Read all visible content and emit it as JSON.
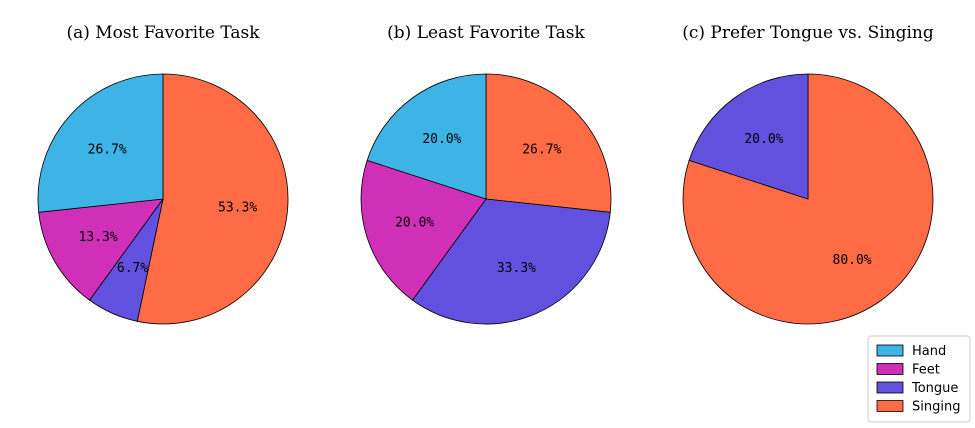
{
  "colors": {
    "Hand": "#3db3e6",
    "Feet": "#d030b8",
    "Tongue": "#6251de",
    "Singing": "#ff6b45"
  },
  "chart_data": [
    {
      "type": "pie",
      "title": "(a) Most Favorite Task",
      "slices": [
        {
          "label": "Singing",
          "value": 53.3,
          "pct_label": "53.3%"
        },
        {
          "label": "Tongue",
          "value": 6.7,
          "pct_label": "6.7%"
        },
        {
          "label": "Feet",
          "value": 13.3,
          "pct_label": "13.3%"
        },
        {
          "label": "Hand",
          "value": 26.7,
          "pct_label": "26.7%"
        }
      ]
    },
    {
      "type": "pie",
      "title": "(b) Least Favorite Task",
      "slices": [
        {
          "label": "Singing",
          "value": 26.7,
          "pct_label": "26.7%"
        },
        {
          "label": "Tongue",
          "value": 33.3,
          "pct_label": "33.3%"
        },
        {
          "label": "Feet",
          "value": 20.0,
          "pct_label": "20.0%"
        },
        {
          "label": "Hand",
          "value": 20.0,
          "pct_label": "20.0%"
        }
      ]
    },
    {
      "type": "pie",
      "title": "(c) Prefer Tongue vs. Singing",
      "slices": [
        {
          "label": "Singing",
          "value": 80.0,
          "pct_label": "80.0%"
        },
        {
          "label": "Tongue",
          "value": 20.0,
          "pct_label": "20.0%"
        }
      ]
    }
  ],
  "legend": {
    "placement": "bottom-right",
    "items": [
      "Hand",
      "Feet",
      "Tongue",
      "Singing"
    ]
  }
}
